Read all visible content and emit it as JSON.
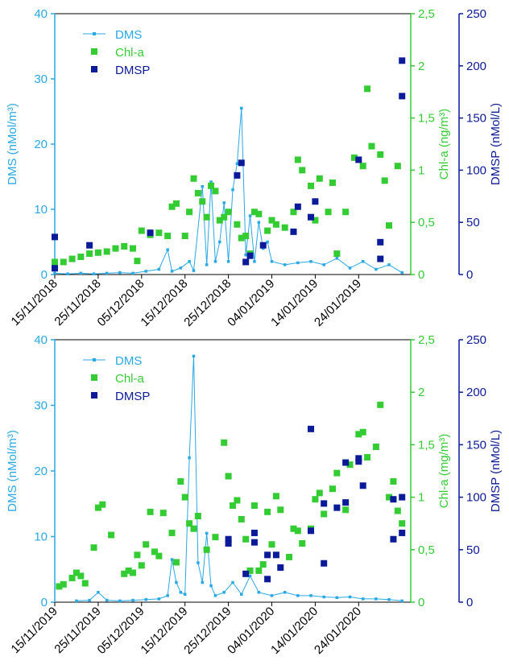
{
  "chart_data": [
    {
      "type": "combo",
      "legend": "upper left",
      "xlim": [
        "2018-11-15",
        "2019-02-05"
      ],
      "xticks": [
        {
          "value": "2018-11-15",
          "label": "15/11/2018"
        },
        {
          "value": "2018-11-25",
          "label": "25/11/2018"
        },
        {
          "value": "2018-12-05",
          "label": "05/12/2018"
        },
        {
          "value": "2018-12-15",
          "label": "15/12/2018"
        },
        {
          "value": "2018-12-25",
          "label": "25/12/2018"
        },
        {
          "value": "2019-01-04",
          "label": "04/01/2019"
        },
        {
          "value": "2019-01-14",
          "label": "14/01/2019"
        },
        {
          "value": "2019-01-24",
          "label": "24/01/2019"
        }
      ],
      "ylabel": "DMS (nMol/m³)",
      "ylim": [
        0,
        40
      ],
      "yticks": [
        0,
        10,
        20,
        30,
        40
      ],
      "y2label": "Chl-a (ng/m³)",
      "y2lim": [
        0,
        2.5
      ],
      "y2ticks": [
        0,
        {
          "value": 0.5,
          "label": "0,5"
        },
        1,
        {
          "value": 1.5,
          "label": "1,5"
        },
        2,
        {
          "value": 2.5,
          "label": "2,5"
        }
      ],
      "y3label": "DMSP (nMol/L)",
      "y3lim": [
        0,
        250
      ],
      "y3ticks": [
        0,
        50,
        100,
        150,
        200,
        250
      ],
      "series": [
        {
          "name": "DMS",
          "color": "#29a8e6",
          "style": "line",
          "axis": "y",
          "x": [
            "2018-11-15",
            "2018-11-18",
            "2018-11-21",
            "2018-11-24",
            "2018-11-27",
            "2018-11-30",
            "2018-12-03",
            "2018-12-06",
            "2018-12-09",
            "2018-12-11",
            "2018-12-12",
            "2018-12-14",
            "2018-12-16",
            "2018-12-17",
            "2018-12-19",
            "2018-12-20",
            "2018-12-21",
            "2018-12-22",
            "2018-12-23",
            "2018-12-24",
            "2018-12-25",
            "2018-12-26",
            "2018-12-27",
            "2018-12-28",
            "2018-12-29",
            "2018-12-30",
            "2018-12-31",
            "2019-01-01",
            "2019-01-02",
            "2019-01-03",
            "2019-01-04",
            "2019-01-07",
            "2019-01-10",
            "2019-01-13",
            "2019-01-16",
            "2019-01-19",
            "2019-01-22",
            "2019-01-25",
            "2019-01-28",
            "2019-01-31",
            "2019-02-03"
          ],
          "values": [
            0.2,
            0.1,
            0.2,
            0.1,
            0.2,
            0.3,
            0.2,
            0.5,
            0.8,
            3.8,
            0.5,
            1,
            2,
            0.6,
            13.5,
            1.5,
            14.2,
            2,
            5,
            11,
            2,
            13,
            17,
            25.5,
            3,
            9,
            2,
            8,
            4,
            5,
            2,
            1.5,
            1.8,
            2,
            1.5,
            2.5,
            1,
            2,
            0.8,
            1.5,
            0.3
          ]
        },
        {
          "name": "Chl-a",
          "color": "#33cc33",
          "style": "scatter",
          "axis": "y2",
          "x": [
            "2018-11-15",
            "2018-11-17",
            "2018-11-19",
            "2018-11-21",
            "2018-11-23",
            "2018-11-25",
            "2018-11-27",
            "2018-11-29",
            "2018-12-01",
            "2018-12-03",
            "2018-12-04",
            "2018-12-05",
            "2018-12-07",
            "2018-12-09",
            "2018-12-11",
            "2018-12-12",
            "2018-12-13",
            "2018-12-15",
            "2018-12-16",
            "2018-12-17",
            "2018-12-18",
            "2018-12-19",
            "2018-12-20",
            "2018-12-21",
            "2018-12-22",
            "2018-12-23",
            "2018-12-24",
            "2018-12-25",
            "2018-12-27",
            "2018-12-28",
            "2018-12-29",
            "2018-12-30",
            "2018-12-31",
            "2019-01-01",
            "2019-01-03",
            "2019-01-04",
            "2019-01-05",
            "2019-01-07",
            "2019-01-09",
            "2019-01-10",
            "2019-01-11",
            "2019-01-13",
            "2019-01-14",
            "2019-01-15",
            "2019-01-17",
            "2019-01-18",
            "2019-01-19",
            "2019-01-21",
            "2019-01-23",
            "2019-01-25",
            "2019-01-26",
            "2019-01-27",
            "2019-01-29",
            "2019-01-30",
            "2019-01-31",
            "2019-02-02"
          ],
          "values": [
            0.12,
            0.12,
            0.15,
            0.17,
            0.2,
            0.21,
            0.22,
            0.25,
            0.27,
            0.25,
            0.13,
            0.42,
            0.38,
            0.4,
            0.37,
            0.65,
            0.68,
            0.37,
            0.6,
            0.92,
            0.78,
            0.7,
            0.55,
            0.85,
            0.8,
            0.52,
            0.55,
            0.6,
            0.48,
            0.35,
            0.37,
            0.2,
            0.6,
            0.58,
            0.42,
            0.52,
            0.48,
            0.45,
            0.6,
            1.1,
            1,
            0.85,
            0.52,
            0.92,
            0.6,
            0.88,
            0.2,
            0.6,
            1.12,
            1.04,
            1.78,
            1.23,
            1.15,
            0.9,
            0.47,
            1.04
          ]
        },
        {
          "name": "DMSP",
          "color": "#0a1a99",
          "style": "scatter",
          "axis": "y3",
          "x": [
            "2018-11-15",
            "2018-11-15",
            "2018-11-23",
            "2018-12-07",
            "2018-12-27",
            "2018-12-28",
            "2018-12-29",
            "2018-12-30",
            "2019-01-02",
            "2019-01-09",
            "2019-01-10",
            "2019-01-13",
            "2019-01-14",
            "2019-01-24",
            "2019-01-29",
            "2019-01-29",
            "2019-02-03",
            "2019-02-03"
          ],
          "values": [
            36,
            6,
            28,
            40,
            95,
            107,
            12,
            18,
            28,
            41,
            65,
            55,
            70,
            110,
            31,
            15,
            205,
            171
          ]
        }
      ]
    },
    {
      "type": "combo",
      "legend": "upper left",
      "xlim": [
        "2019-11-15",
        "2020-02-05"
      ],
      "xticks": [
        {
          "value": "2019-11-15",
          "label": "15/11/2019"
        },
        {
          "value": "2019-11-25",
          "label": "25/11/2019"
        },
        {
          "value": "2019-12-05",
          "label": "05/12/2019"
        },
        {
          "value": "2019-12-15",
          "label": "15/12/2019"
        },
        {
          "value": "2019-12-25",
          "label": "25/12/2019"
        },
        {
          "value": "2020-01-04",
          "label": "04/01/2020"
        },
        {
          "value": "2020-01-14",
          "label": "14/01/2020"
        },
        {
          "value": "2020-01-24",
          "label": "24/01/2020"
        }
      ],
      "ylabel": "DMS (nMol/m³)",
      "ylim": [
        0,
        40
      ],
      "yticks": [
        0,
        10,
        20,
        30,
        40
      ],
      "y2label": "Chl-a (mg/m³)",
      "y2lim": [
        0,
        2.5
      ],
      "y2ticks": [
        0,
        {
          "value": 0.5,
          "label": "0,5"
        },
        1,
        {
          "value": 1.5,
          "label": "1,5"
        },
        2,
        {
          "value": 2.5,
          "label": "2,5"
        }
      ],
      "y3label": "DMSP (nMol/L)",
      "y3lim": [
        0,
        250
      ],
      "y3ticks": [
        0,
        50,
        100,
        150,
        200,
        250
      ],
      "series": [
        {
          "name": "DMS",
          "color": "#29a8e6",
          "style": "line",
          "axis": "y",
          "x": [
            "2019-11-20",
            "2019-11-23",
            "2019-11-25",
            "2019-11-27",
            "2019-11-30",
            "2019-12-03",
            "2019-12-06",
            "2019-12-09",
            "2019-12-11",
            "2019-12-12",
            "2019-12-13",
            "2019-12-14",
            "2019-12-15",
            "2019-12-16",
            "2019-12-17",
            "2019-12-18",
            "2019-12-19",
            "2019-12-20",
            "2019-12-21",
            "2019-12-22",
            "2019-12-24",
            "2019-12-26",
            "2019-12-28",
            "2019-12-30",
            "2020-01-01",
            "2020-01-04",
            "2020-01-07",
            "2020-01-10",
            "2020-01-13",
            "2020-01-16",
            "2020-01-19",
            "2020-01-22",
            "2020-01-25",
            "2020-01-28",
            "2020-01-31",
            "2020-02-03"
          ],
          "values": [
            0.2,
            0.3,
            1.5,
            0.3,
            0.2,
            0.3,
            0.4,
            0.5,
            1,
            6.5,
            3,
            1.5,
            1.2,
            22,
            37.5,
            6,
            3,
            10.5,
            2.5,
            1,
            1.5,
            3,
            1.2,
            4,
            1.5,
            1,
            1.5,
            1,
            1,
            0.8,
            0.7,
            0.8,
            0.5,
            0.5,
            0.4,
            0.2
          ]
        },
        {
          "name": "Chl-a",
          "color": "#33cc33",
          "style": "scatter",
          "axis": "y2",
          "x": [
            "2019-11-16",
            "2019-11-17",
            "2019-11-19",
            "2019-11-20",
            "2019-11-21",
            "2019-11-22",
            "2019-11-24",
            "2019-11-25",
            "2019-11-26",
            "2019-11-28",
            "2019-12-01",
            "2019-12-02",
            "2019-12-03",
            "2019-12-04",
            "2019-12-05",
            "2019-12-06",
            "2019-12-07",
            "2019-12-08",
            "2019-12-09",
            "2019-12-10",
            "2019-12-12",
            "2019-12-13",
            "2019-12-14",
            "2019-12-15",
            "2019-12-16",
            "2019-12-17",
            "2019-12-18",
            "2019-12-20",
            "2019-12-22",
            "2019-12-24",
            "2019-12-25",
            "2019-12-26",
            "2019-12-27",
            "2019-12-28",
            "2019-12-29",
            "2019-12-30",
            "2019-12-31",
            "2020-01-01",
            "2020-01-02",
            "2020-01-03",
            "2020-01-04",
            "2020-01-05",
            "2020-01-06",
            "2020-01-08",
            "2020-01-09",
            "2020-01-10",
            "2020-01-11",
            "2020-01-13",
            "2020-01-14",
            "2020-01-15",
            "2020-01-16",
            "2020-01-18",
            "2020-01-19",
            "2020-01-21",
            "2020-01-22",
            "2020-01-24",
            "2020-01-25",
            "2020-01-26",
            "2020-01-28",
            "2020-01-29",
            "2020-01-31",
            "2020-02-01",
            "2020-02-02",
            "2020-02-03"
          ],
          "values": [
            0.15,
            0.17,
            0.23,
            0.28,
            0.25,
            0.18,
            0.52,
            0.9,
            0.93,
            0.64,
            0.27,
            0.3,
            0.28,
            0.45,
            0.35,
            0.55,
            0.86,
            0.48,
            0.44,
            0.85,
            0.66,
            0.38,
            1.15,
            1,
            0.75,
            0.7,
            0.82,
            0.5,
            0.62,
            1.52,
            1.2,
            0.92,
            0.97,
            0.79,
            0.6,
            0.3,
            0.92,
            0.3,
            0.36,
            0.86,
            0.55,
            1.01,
            0.88,
            0.43,
            0.7,
            0.68,
            0.56,
            0.7,
            0.98,
            1.04,
            0.84,
            1.08,
            1.23,
            0.88,
            1.31,
            1.6,
            1.62,
            1.38,
            1.48,
            1.88,
            1,
            1.15,
            0.87,
            0.75
          ]
        },
        {
          "name": "DMSP",
          "color": "#0a1a99",
          "style": "scatter",
          "axis": "y3",
          "x": [
            "2019-12-25",
            "2019-12-25",
            "2019-12-29",
            "2019-12-31",
            "2019-12-31",
            "2020-01-03",
            "2020-01-03",
            "2020-01-05",
            "2020-01-06",
            "2020-01-13",
            "2020-01-13",
            "2020-01-16",
            "2020-01-16",
            "2020-01-19",
            "2020-01-21",
            "2020-01-21",
            "2020-01-24",
            "2020-01-24",
            "2020-01-25",
            "2020-02-01",
            "2020-02-01",
            "2020-02-03",
            "2020-02-03"
          ],
          "values": [
            60,
            56,
            27,
            66,
            57,
            45,
            22,
            45,
            33,
            165,
            68,
            94,
            37,
            90,
            133,
            95,
            137,
            134,
            111,
            98,
            60,
            66,
            100
          ]
        }
      ]
    }
  ]
}
